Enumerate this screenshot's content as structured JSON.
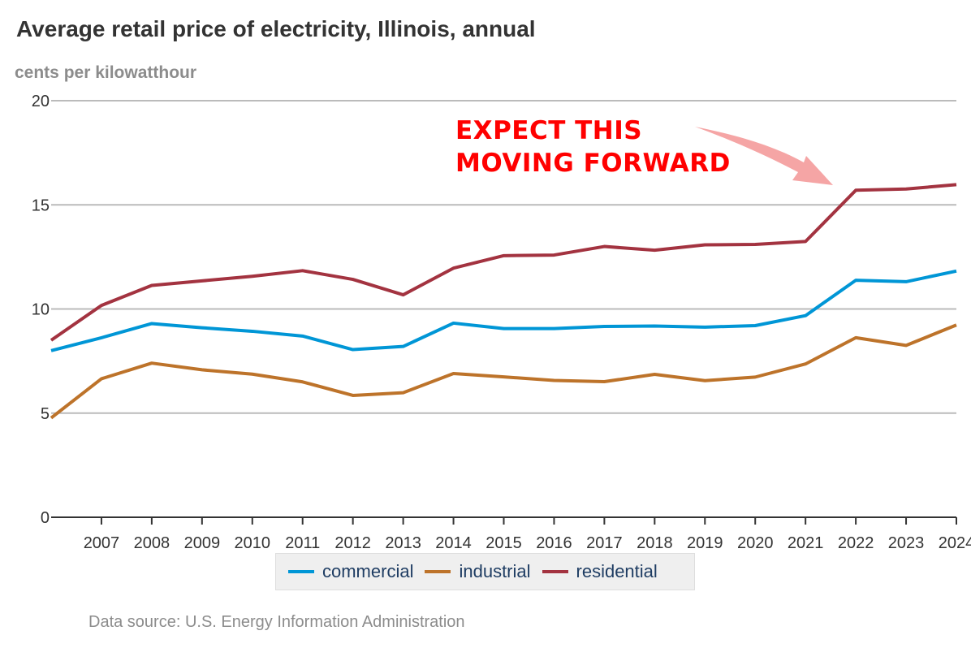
{
  "chart_data": {
    "type": "line",
    "title": "Average retail price of electricity, Illinois, annual",
    "subtitle": "cents per kilowatthour",
    "xlabel": "",
    "ylabel": "cents per kilowatthour",
    "x": [
      2006,
      2007,
      2008,
      2009,
      2010,
      2011,
      2012,
      2013,
      2014,
      2015,
      2016,
      2017,
      2018,
      2019,
      2020,
      2021,
      2022,
      2023,
      2024
    ],
    "x_tick_labels": [
      "2007",
      "2008",
      "2009",
      "2010",
      "2011",
      "2012",
      "2013",
      "2014",
      "2015",
      "2016",
      "2017",
      "2018",
      "2019",
      "2020",
      "2021",
      "2022",
      "2023",
      "2024"
    ],
    "y_tick_labels": [
      "0",
      "5",
      "10",
      "15",
      "20"
    ],
    "y_ticks": [
      0,
      5,
      10,
      15,
      20
    ],
    "xlim": [
      2006,
      2024
    ],
    "ylim": [
      0,
      20
    ],
    "grid": true,
    "legend_position": "bottom-center",
    "series": [
      {
        "name": "commercial",
        "color": "#0096d6",
        "values": [
          8.0,
          8.62,
          9.3,
          9.1,
          8.93,
          8.7,
          8.05,
          8.2,
          9.32,
          9.06,
          9.06,
          9.16,
          9.18,
          9.13,
          9.2,
          9.68,
          11.38,
          11.31,
          11.82
        ]
      },
      {
        "name": "industrial",
        "color": "#bd732a",
        "values": [
          4.77,
          6.65,
          7.4,
          7.08,
          6.87,
          6.5,
          5.85,
          5.98,
          6.9,
          6.74,
          6.57,
          6.51,
          6.86,
          6.56,
          6.73,
          7.36,
          8.62,
          8.25,
          9.23
        ]
      },
      {
        "name": "residential",
        "color": "#a33340",
        "values": [
          8.5,
          10.17,
          11.13,
          11.35,
          11.57,
          11.84,
          11.42,
          10.68,
          11.96,
          12.56,
          12.59,
          13.0,
          12.82,
          13.08,
          13.1,
          13.24,
          15.7,
          15.76,
          15.97
        ]
      }
    ],
    "annotations": [
      {
        "text_lines": [
          "EXPECT THIS",
          "MOVING FORWARD"
        ],
        "color": "#ff0000",
        "arrow_color": "#f4a0a0",
        "points_to": {
          "series": "residential",
          "x": 2022
        }
      }
    ],
    "source": "Data source: U.S. Energy Information Administration"
  },
  "colors": {
    "title": "#333333",
    "subtitle": "#8c8c8c",
    "gridline": "#bbbbbb",
    "axis": "#333333",
    "legend_text": "#1f3d63",
    "legend_background": "#efefef"
  }
}
